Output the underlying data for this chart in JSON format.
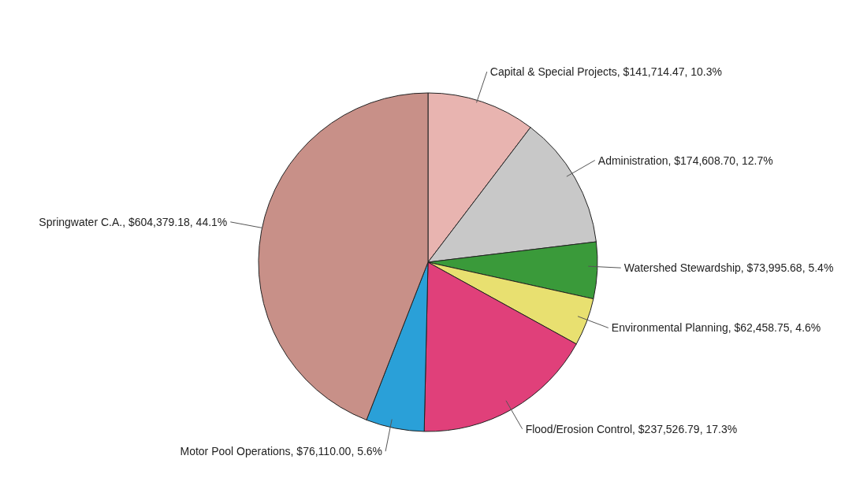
{
  "chart_data": {
    "type": "pie",
    "categories": [
      "Capital & Special Projects",
      "Administration",
      "Watershed Stewardship",
      "Environmental Planning",
      "Flood/Erosion Control",
      "Motor Pool Operations",
      "Springwater C.A."
    ],
    "values": [
      141714.47,
      174608.7,
      73995.68,
      62458.75,
      237526.79,
      76110.0,
      604379.18
    ],
    "value_labels": [
      "$141,714.47, 10.3%",
      "$174,608.70, 12.7%",
      "$73,995.68, 5.4%",
      "$62,458.75, 4.6%",
      "$237,526.79, 17.3%",
      "$76,110.00, 5.6%",
      "$604,379.18, 44.1%"
    ],
    "colors": [
      "#e8b4b0",
      "#c8c8c8",
      "#3a9a3a",
      "#e8e070",
      "#e0407a",
      "#2aa0d8",
      "#c89088"
    ]
  }
}
